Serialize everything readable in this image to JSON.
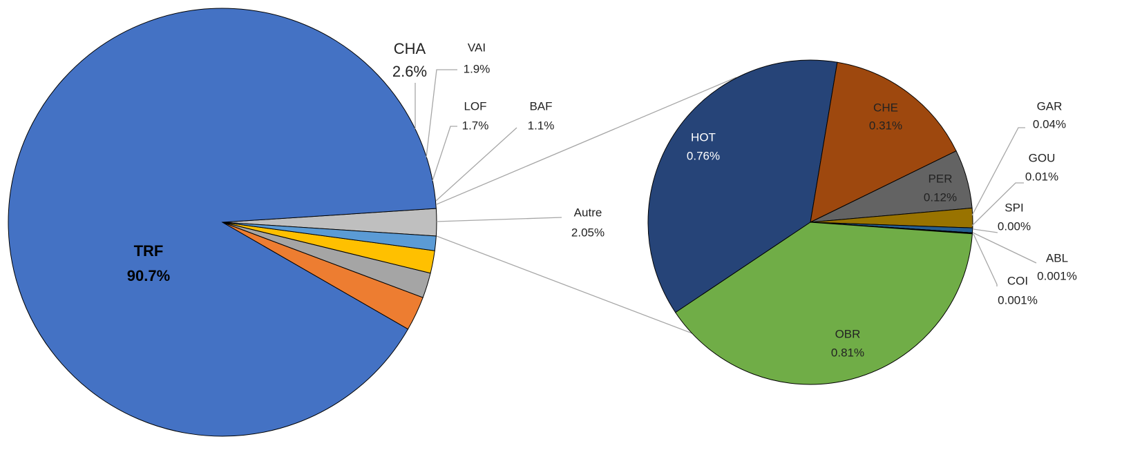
{
  "chart_data": [
    {
      "type": "pie",
      "categories": [
        "TRF",
        "CHA",
        "VAI",
        "LOF",
        "BAF",
        "Autre"
      ],
      "values": [
        90.7,
        2.6,
        1.9,
        1.7,
        1.1,
        2.05
      ],
      "value_labels": [
        "90.7%",
        "2.6%",
        "1.9%",
        "1.7%",
        "1.1%",
        "2.05%"
      ],
      "colors": [
        "#4472c4",
        "#ed7d31",
        "#a5a5a5",
        "#ffc000",
        "#5b9bd5",
        "#bfbfbf"
      ]
    },
    {
      "type": "pie",
      "categories": [
        "HOT",
        "CHE",
        "PER",
        "GAR",
        "GOU",
        "SPI",
        "ABL",
        "COI",
        "OBR"
      ],
      "values": [
        0.76,
        0.31,
        0.12,
        0.04,
        0.01,
        0.0,
        0.001,
        0.001,
        0.81
      ],
      "value_labels": [
        "0.76%",
        "0.31%",
        "0.12%",
        "0.04%",
        "0.01%",
        "0.00%",
        "0.001%",
        "0.001%",
        "0.81%"
      ],
      "colors": [
        "#264478",
        "#9e480e",
        "#636363",
        "#997300",
        "#255e91",
        "#698ed0",
        "#f1975a",
        "#b7b7b7",
        "#70ad47"
      ]
    }
  ]
}
